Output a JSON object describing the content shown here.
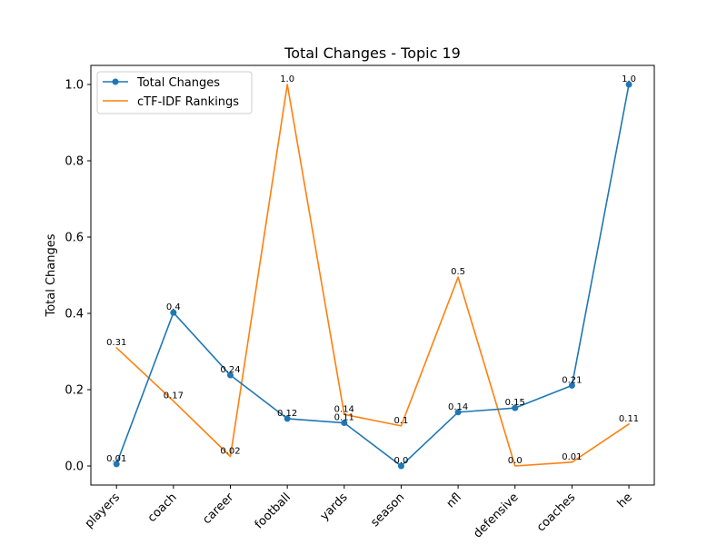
{
  "chart_data": {
    "type": "line",
    "title": "Total Changes - Topic 19",
    "xlabel": "",
    "ylabel": "Total Changes",
    "categories": [
      "players",
      "coach",
      "career",
      "football",
      "yards",
      "season",
      "nfl",
      "defensive",
      "coaches",
      "he"
    ],
    "ylim": [
      -0.05,
      1.05
    ],
    "yticks": [
      0.0,
      0.2,
      0.4,
      0.6,
      0.8,
      1.0
    ],
    "ytick_labels": [
      "0.0",
      "0.2",
      "0.4",
      "0.6",
      "0.8",
      "1.0"
    ],
    "grid": false,
    "legend_position": "top-left",
    "series": [
      {
        "name": "Total Changes",
        "color": "#1f77b4",
        "marker": "circle",
        "values": [
          0.005,
          0.402,
          0.238,
          0.124,
          0.113,
          0.0,
          0.141,
          0.152,
          0.211,
          1.0
        ],
        "labels": [
          "0.01",
          "0.4",
          "0.24",
          "0.12",
          "0.11",
          "0.0",
          "0.14",
          "0.15",
          "0.21",
          "1.0"
        ]
      },
      {
        "name": "cTF-IDF Rankings",
        "color": "#ff7f0e",
        "marker": "none",
        "values": [
          0.31,
          0.17,
          0.025,
          1.0,
          0.135,
          0.105,
          0.495,
          0.0,
          0.01,
          0.11
        ],
        "labels": [
          "0.31",
          "0.17",
          "0.02",
          "1.0",
          "0.14",
          "0.1",
          "0.5",
          "0.0",
          "0.01",
          "0.11"
        ]
      }
    ]
  }
}
